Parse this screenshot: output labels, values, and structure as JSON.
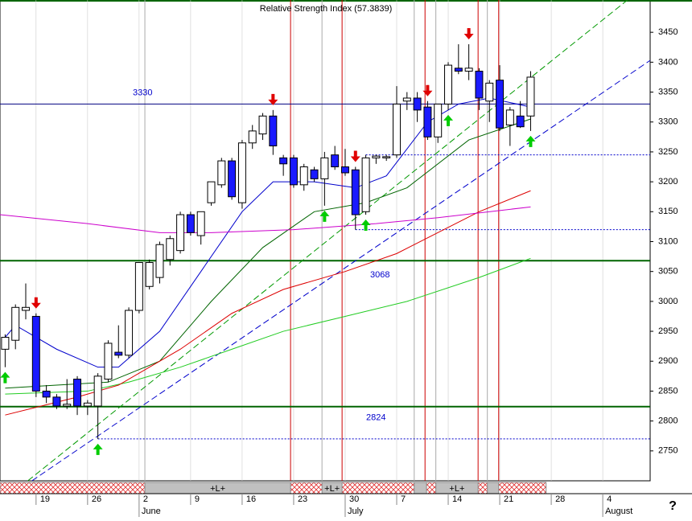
{
  "chart_data": {
    "type": "candlestick",
    "title": "Relative Strength Index (57.3839)",
    "help": "?",
    "xlim": [
      -0.5,
      62.6
    ],
    "ylim": [
      2700,
      3504
    ],
    "yticks": [
      2750,
      2800,
      2850,
      2900,
      2950,
      3000,
      3050,
      3100,
      3150,
      3200,
      3250,
      3300,
      3350,
      3400,
      3450
    ],
    "xticks": [
      {
        "value": 3,
        "label": "19"
      },
      {
        "value": 8,
        "label": "26"
      },
      {
        "value": 13,
        "label": "2"
      },
      {
        "value": 18,
        "label": "9"
      },
      {
        "value": 23,
        "label": "16"
      },
      {
        "value": 28,
        "label": "23"
      },
      {
        "value": 33,
        "label": "30"
      },
      {
        "value": 38,
        "label": "7"
      },
      {
        "value": 43,
        "label": "14"
      },
      {
        "value": 48,
        "label": "21"
      },
      {
        "value": 53,
        "label": "28"
      },
      {
        "value": 58,
        "label": "4"
      }
    ],
    "month_ticks": [
      {
        "value": 13,
        "label": "June"
      },
      {
        "value": 33,
        "label": "July"
      },
      {
        "value": 58,
        "label": "August"
      }
    ],
    "up_color": "#ffffff",
    "down_color": "#1a1aff",
    "open": [
      2920,
      2935,
      2985,
      2975,
      2850,
      2840,
      2825,
      2870,
      2825,
      2825,
      2870,
      2915,
      2910,
      2985,
      3025,
      3040,
      3070,
      3085,
      3145,
      3110,
      3165,
      3195,
      3235,
      3165,
      3265,
      3280,
      3310,
      3240,
      3240,
      3195,
      3220,
      3205,
      3245,
      3225,
      3220,
      3150,
      3240,
      3240,
      3245,
      3335,
      3340,
      3325,
      3275,
      3330,
      3390,
      3385,
      3385,
      3335,
      3370,
      3295,
      3310,
      3310
    ],
    "high": [
      2945,
      2995,
      3030,
      2980,
      2860,
      2845,
      2870,
      2875,
      2835,
      2880,
      2935,
      2960,
      2990,
      3065,
      3070,
      3100,
      3110,
      3150,
      3150,
      3150,
      3200,
      3240,
      3240,
      3270,
      3295,
      3315,
      3320,
      3245,
      3245,
      3230,
      3225,
      3250,
      3260,
      3255,
      3225,
      3245,
      3245,
      3245,
      3360,
      3350,
      3350,
      3335,
      3330,
      3400,
      3430,
      3430,
      3390,
      3370,
      3395,
      3325,
      3335,
      3385
    ],
    "low": [
      2890,
      2920,
      2970,
      2840,
      2830,
      2820,
      2820,
      2810,
      2810,
      2770,
      2865,
      2905,
      2905,
      2980,
      3020,
      3030,
      3060,
      3080,
      3110,
      3095,
      3160,
      3190,
      3170,
      3155,
      3255,
      3270,
      3245,
      3210,
      3190,
      3185,
      3200,
      3160,
      3220,
      3210,
      3120,
      3145,
      3230,
      3235,
      3240,
      3320,
      3300,
      3270,
      3265,
      3320,
      3380,
      3370,
      3320,
      3300,
      3285,
      3260,
      3290,
      3285
    ],
    "close": [
      2940,
      2990,
      2990,
      2850,
      2840,
      2825,
      2828,
      2825,
      2830,
      2875,
      2930,
      2910,
      2985,
      3065,
      3065,
      3095,
      3105,
      3145,
      3115,
      3150,
      3200,
      3235,
      3175,
      3265,
      3285,
      3310,
      3260,
      3230,
      3195,
      3225,
      3205,
      3240,
      3225,
      3215,
      3145,
      3240,
      3243,
      3242,
      3330,
      3340,
      3320,
      3275,
      3330,
      3395,
      3385,
      3390,
      3340,
      3365,
      3290,
      3320,
      3292,
      3375
    ],
    "sell_signals": [
      3,
      26,
      34,
      41,
      45
    ],
    "buy_signals": [
      0,
      9,
      31,
      35,
      43,
      51
    ],
    "lines": [
      {
        "color": "#0000cc",
        "x": [
          0,
          1,
          5,
          9,
          11,
          15,
          19,
          23,
          26,
          30,
          34,
          37,
          41,
          44,
          47,
          51
        ],
        "values": [
          2940,
          2960,
          2920,
          2890,
          2890,
          2950,
          3050,
          3150,
          3200,
          3200,
          3190,
          3210,
          3300,
          3330,
          3340,
          3325
        ]
      },
      {
        "color": "#006400",
        "x": [
          0,
          5,
          10,
          15,
          20,
          25,
          30,
          35,
          39,
          45,
          51
        ],
        "values": [
          2855,
          2860,
          2865,
          2900,
          3000,
          3090,
          3150,
          3165,
          3190,
          3270,
          3305
        ]
      },
      {
        "color": "#22cc22",
        "x": [
          0,
          8,
          12,
          17,
          22,
          27,
          33,
          39,
          46,
          51
        ],
        "values": [
          2845,
          2850,
          2865,
          2890,
          2920,
          2950,
          2975,
          3000,
          3040,
          3072
        ]
      },
      {
        "color": "#dd0000",
        "x": [
          0,
          7,
          11,
          17,
          22,
          27,
          33,
          38,
          46,
          51
        ],
        "values": [
          2810,
          2840,
          2860,
          2920,
          2980,
          3020,
          3050,
          3080,
          3150,
          3185
        ]
      },
      {
        "color": "#cc00cc",
        "x": [
          -0.5,
          8,
          15,
          20,
          28,
          36,
          42,
          51
        ],
        "values": [
          3145,
          3130,
          3115,
          3115,
          3120,
          3130,
          3140,
          3158
        ]
      }
    ],
    "trendlines": [
      {
        "color": "#009900",
        "x": [
          2.2,
          60.4
        ],
        "values": [
          2700,
          3504
        ]
      },
      {
        "color": "#0000cc",
        "x": [
          2.6,
          62.6
        ],
        "values": [
          2700,
          3403
        ]
      }
    ],
    "levels": [
      {
        "value": 3330,
        "color": "#000080"
      },
      {
        "value": 3068,
        "color": "#006400"
      },
      {
        "value": 2824,
        "color": "#006400"
      }
    ],
    "supports": [
      {
        "value": 3245,
        "from": 35
      },
      {
        "value": 3120,
        "from": 34
      },
      {
        "value": 2770,
        "from": 9
      }
    ],
    "red_markers": [
      27.7,
      32.7,
      40.75,
      45.9,
      47.9
    ],
    "gray_markers": [
      13.56,
      30.75,
      39.7,
      41.8,
      46.8
    ],
    "bands": [
      {
        "start": 13.56,
        "end": 27.7,
        "label": "+L+"
      },
      {
        "start": 30.75,
        "end": 32.7,
        "label": "+L+"
      },
      {
        "start": 39.7,
        "end": 40.9
      },
      {
        "start": 41.8,
        "end": 45.9,
        "label": "+L+"
      },
      {
        "start": 46.8,
        "end": 47.9
      }
    ],
    "band_range": [
      -0.5,
      52.5
    ]
  }
}
